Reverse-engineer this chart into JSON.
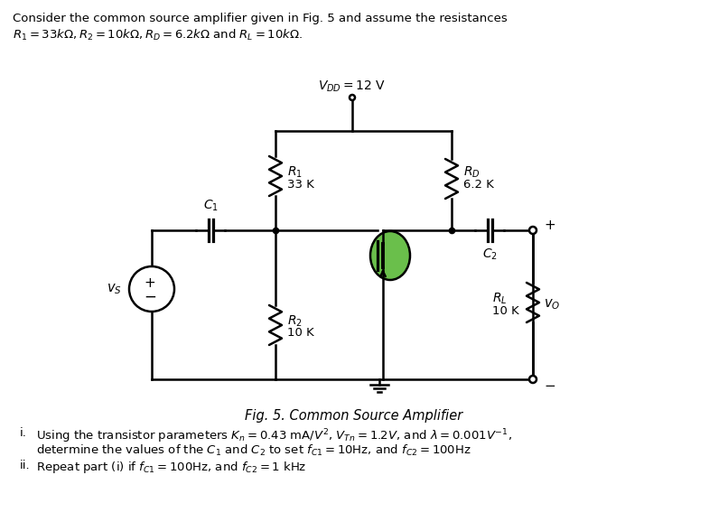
{
  "title_line1": "Consider the common source amplifier given in Fig. 5 and assume the resistances",
  "title_line2": "$R_1 = 33k\\Omega, R_2 = 10k\\Omega, R_D = 6.2k\\Omega$ and $R_L = 10k\\Omega$.",
  "vdd_label": "$V_{DD} = 12$ V",
  "fig_caption": "Fig. 5. Common Source Amplifier",
  "bg_color": "#ffffff",
  "mosfet_color": "#6abf4b",
  "text_color": "#000000",
  "lw": 1.8
}
